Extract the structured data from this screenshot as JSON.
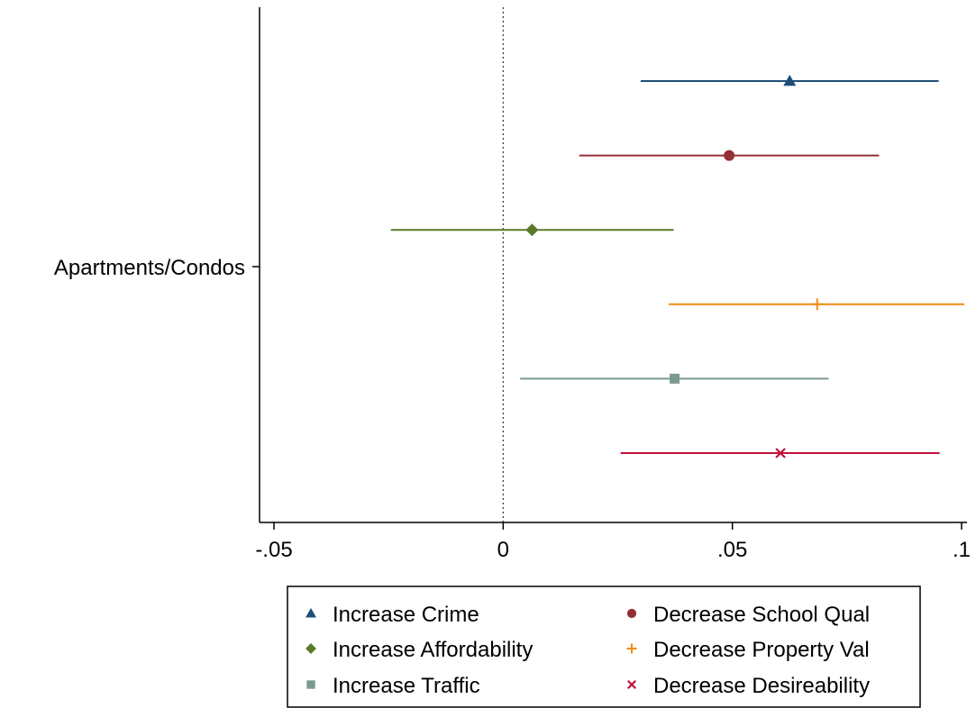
{
  "chart_data": {
    "type": "scatter",
    "subtype": "coefficient-plot",
    "title": "",
    "xlabel": "",
    "ylabel": "",
    "category": "Apartments/Condos",
    "xlim": [
      -0.05,
      0.1
    ],
    "x_ticks": [
      {
        "value": -0.05,
        "label": "-.05"
      },
      {
        "value": 0,
        "label": "0"
      },
      {
        "value": 0.05,
        "label": ".05"
      },
      {
        "value": 0.1,
        "label": ".1"
      }
    ],
    "reference_line": {
      "x": 0,
      "style": "dotted"
    },
    "grid": false,
    "legend_position": "bottom",
    "series": [
      {
        "name": "Increase Crime",
        "estimate": 0.0625,
        "ci_low": 0.03,
        "ci_high": 0.095,
        "marker": "triangle",
        "color": "#1f4e79"
      },
      {
        "name": "Decrease School Qual",
        "estimate": 0.0493,
        "ci_low": 0.0166,
        "ci_high": 0.082,
        "marker": "circle",
        "color": "#943034"
      },
      {
        "name": "Increase Affordability",
        "estimate": 0.0063,
        "ci_low": -0.0245,
        "ci_high": 0.0372,
        "marker": "diamond",
        "color": "#5a7a2a"
      },
      {
        "name": "Decrease Property Val",
        "estimate": 0.0685,
        "ci_low": 0.0361,
        "ci_high": 0.1006,
        "marker": "plus",
        "color": "#f08c14"
      },
      {
        "name": "Increase Traffic",
        "estimate": 0.0374,
        "ci_low": 0.0037,
        "ci_high": 0.071,
        "marker": "square",
        "color": "#7a9a90"
      },
      {
        "name": "Decrease Desireability",
        "estimate": 0.0605,
        "ci_low": 0.0256,
        "ci_high": 0.0952,
        "marker": "x",
        "color": "#c4103c"
      }
    ],
    "legend_order": [
      "Increase Crime",
      "Decrease School Qual",
      "Increase Affordability",
      "Decrease Property Val",
      "Increase Traffic",
      "Decrease Desireability"
    ]
  }
}
